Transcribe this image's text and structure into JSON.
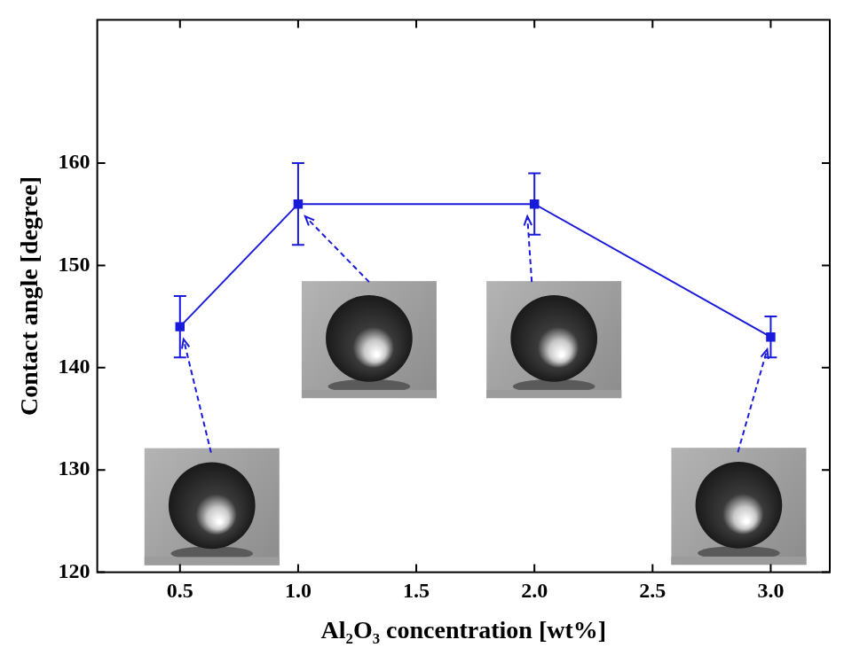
{
  "chart_data": {
    "type": "line",
    "x_label": "Al₂O₃ concentration [wt%]",
    "y_label": "Contact angle [degree]",
    "x": [
      0.5,
      1,
      2,
      3
    ],
    "series": [
      {
        "color": "#1a1adc",
        "marker": "square",
        "line_style": "solid",
        "values": [
          144,
          156,
          156,
          143
        ],
        "errors": [
          3,
          4,
          3,
          2
        ]
      }
    ],
    "xlim": [
      0.15,
      3.25
    ],
    "xticks": [
      0.5,
      {
        "value": 1,
        "label": "1.0"
      },
      1.5,
      {
        "value": 2,
        "label": "2.0"
      },
      2.5,
      {
        "value": 3,
        "label": "3.0"
      }
    ],
    "ylim": [
      120,
      174
    ],
    "yticks": [
      120,
      130,
      140,
      150,
      160
    ],
    "grid": false
  }
}
